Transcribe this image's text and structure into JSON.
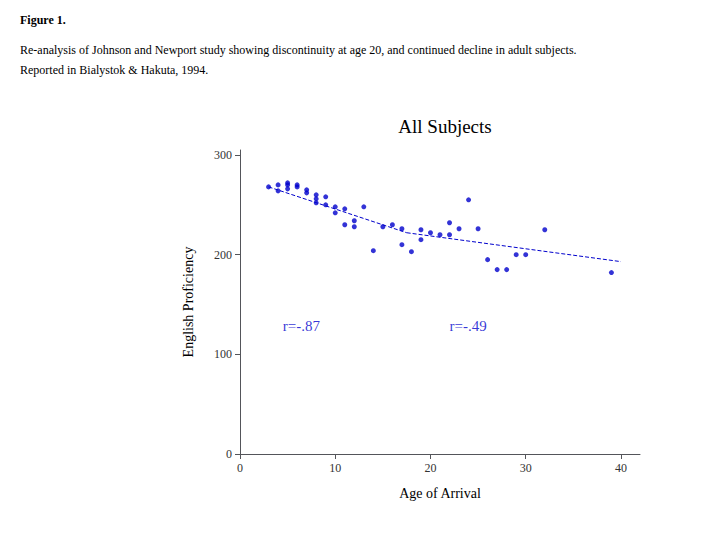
{
  "chart_data": {
    "type": "scatter",
    "title": "All Subjects",
    "xlabel": "Age of Arrival",
    "ylabel": "English Proficiency",
    "captions": [
      "Figure 1.",
      "Re-analysis of Johnson and Newport study showing discontinuity at age 20, and continued decline in adult subjects.",
      "Reported in Bialystok & Hakuta, 1994."
    ],
    "xlim": [
      0,
      42
    ],
    "ylim": [
      0,
      305
    ],
    "xticks": [
      0,
      10,
      20,
      30,
      40
    ],
    "yticks": [
      0,
      100,
      200,
      300
    ],
    "grid": false,
    "series": [
      {
        "type": "scatter",
        "color": "#0000CC",
        "x": [
          3,
          4,
          4,
          5,
          5,
          5,
          6,
          6,
          7,
          7,
          8,
          8,
          8,
          9,
          9,
          10,
          10,
          11,
          11,
          12,
          12,
          13,
          14,
          15,
          16,
          17,
          17,
          18,
          19,
          19,
          20,
          21,
          22,
          22,
          23,
          24,
          25,
          26,
          27,
          28,
          29,
          30,
          32,
          39
        ],
        "values": [
          268,
          270,
          264,
          270,
          266,
          272,
          268,
          270,
          262,
          265,
          260,
          256,
          252,
          258,
          250,
          248,
          242,
          246,
          230,
          234,
          228,
          248,
          204,
          228,
          230,
          226,
          210,
          203,
          225,
          215,
          222,
          220,
          232,
          220,
          226,
          255,
          226,
          195,
          185,
          185,
          200,
          200,
          225,
          182
        ]
      },
      {
        "type": "line",
        "line_style": "dashed",
        "color": "#0000CC",
        "x": [
          3,
          17.5
        ],
        "values": [
          268,
          222
        ]
      },
      {
        "type": "line",
        "line_style": "dashed",
        "color": "#0000CC",
        "x": [
          17.5,
          40
        ],
        "values": [
          222,
          193
        ]
      }
    ],
    "annotations": [
      {
        "text": "r=-.87",
        "x": 4.5,
        "y": 128,
        "color": "#0000CC"
      },
      {
        "text": "r=-.49",
        "x": 22,
        "y": 128,
        "color": "#0000CC"
      }
    ]
  }
}
